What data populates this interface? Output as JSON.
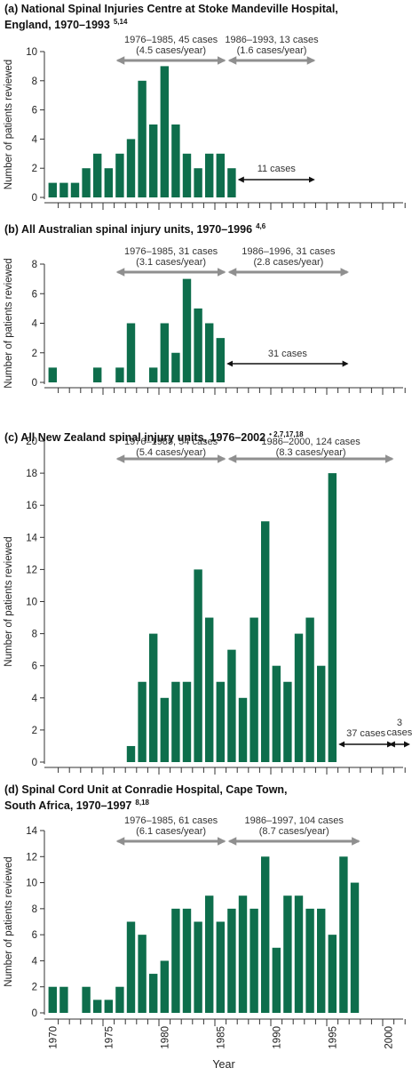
{
  "chart_data": [
    {
      "type": "bar",
      "title": "(a) National Spinal Injuries Centre at Stoke Mandeville Hospital,",
      "title_line2": "England, 1970–1993",
      "title_refs": "5,14",
      "ylabel": "Number of patients reviewed",
      "ylim": [
        0,
        10
      ],
      "yticks": [
        0,
        2,
        4,
        6,
        8,
        10
      ],
      "x": [
        1970,
        1971,
        1972,
        1973,
        1974,
        1975,
        1976,
        1977,
        1978,
        1979,
        1980,
        1981,
        1982,
        1983,
        1984,
        1985,
        1986
      ],
      "values": [
        1,
        1,
        1,
        2,
        3,
        2,
        3,
        4,
        8,
        5,
        9,
        5,
        3,
        2,
        3,
        3,
        2
      ],
      "annotations": [
        {
          "lines": [
            "1976–1985, 45 cases",
            "(4.5 cases/year)"
          ],
          "style": "gray",
          "from": 1976,
          "to": 1985
        },
        {
          "lines": [
            "1986–1993, 13 cases",
            "(1.6 cases/year)"
          ],
          "style": "gray",
          "from": 1986,
          "to": 1993
        },
        {
          "lines": [
            "11 cases"
          ],
          "style": "black",
          "from": 1987,
          "to": 1993,
          "value": 2
        }
      ]
    },
    {
      "type": "bar",
      "title": "(b) All Australian spinal injury units, 1970–1996",
      "title_refs": "4,6",
      "ylabel": "Number of patients reviewed",
      "ylim": [
        0,
        8
      ],
      "yticks": [
        0,
        2,
        4,
        6,
        8
      ],
      "x": [
        1970,
        1971,
        1972,
        1973,
        1974,
        1975,
        1976,
        1977,
        1978,
        1979,
        1980,
        1981,
        1982,
        1983,
        1984,
        1985
      ],
      "values": [
        1,
        0,
        0,
        0,
        1,
        0,
        1,
        4,
        0,
        1,
        4,
        2,
        7,
        5,
        4,
        3
      ],
      "annotations": [
        {
          "lines": [
            "1976–1985, 31 cases",
            "(3.1 cases/year)"
          ],
          "style": "gray",
          "from": 1976,
          "to": 1985
        },
        {
          "lines": [
            "1986–1996, 31 cases",
            "(2.8 cases/year)"
          ],
          "style": "gray",
          "from": 1986,
          "to": 1996
        },
        {
          "lines": [
            "31 cases"
          ],
          "style": "black",
          "from": 1986,
          "to": 1996,
          "value": 1.25
        }
      ]
    },
    {
      "type": "bar",
      "title": "(c) All New Zealand spinal injury units, 1976–2002",
      "title_refs": "• 2,7,17,18",
      "ylabel": "Number of patients reviewed",
      "ylim": [
        0,
        20
      ],
      "yticks": [
        0,
        2,
        4,
        6,
        8,
        10,
        12,
        14,
        16,
        18,
        20
      ],
      "x": [
        1977,
        1978,
        1979,
        1980,
        1981,
        1982,
        1983,
        1984,
        1985,
        1986,
        1987,
        1988,
        1989,
        1990,
        1991,
        1992,
        1993,
        1994,
        1995
      ],
      "values": [
        1,
        5,
        8,
        4,
        5,
        5,
        12,
        9,
        5,
        7,
        4,
        9,
        15,
        6,
        5,
        8,
        9,
        6,
        18
      ],
      "annotations": [
        {
          "lines": [
            "1976–1985, 54 cases",
            "(5.4 cases/year)"
          ],
          "style": "gray",
          "from": 1976,
          "to": 1985
        },
        {
          "lines": [
            "1986–2000, 124 cases",
            "(8.3 cases/year)"
          ],
          "style": "gray",
          "from": 1986,
          "to": 2000
        },
        {
          "lines": [
            "37 cases"
          ],
          "style": "black",
          "from": 1996,
          "to": 2000,
          "value": 0.5
        },
        {
          "lines": [
            "3",
            "cases"
          ],
          "style": "black",
          "from": 2000.5,
          "to": 2001.5,
          "value": 0.5
        }
      ]
    },
    {
      "type": "bar",
      "title": "(d) Spinal Cord Unit at Conradie Hospital, Cape Town,",
      "title_line2": "South Africa, 1970–1997",
      "title_refs": "8,18",
      "ylabel": "Number of patients reviewed",
      "xlabel": "Year",
      "ylim": [
        0,
        14
      ],
      "yticks": [
        0,
        2,
        4,
        6,
        8,
        10,
        12,
        14
      ],
      "x": [
        1970,
        1971,
        1972,
        1973,
        1974,
        1975,
        1976,
        1977,
        1978,
        1979,
        1980,
        1981,
        1982,
        1983,
        1984,
        1985,
        1986,
        1987,
        1988,
        1989,
        1990,
        1991,
        1992,
        1993,
        1994,
        1995,
        1996,
        1997
      ],
      "values": [
        2,
        2,
        0,
        2,
        1,
        1,
        2,
        7,
        6,
        3,
        4,
        8,
        8,
        7,
        9,
        7,
        8,
        9,
        8,
        12,
        5,
        9,
        9,
        8,
        8,
        6,
        12,
        10
      ],
      "xticklabels": [
        "1970",
        "1975",
        "1980",
        "1985",
        "1990",
        "1995",
        "2000"
      ],
      "annotations": [
        {
          "lines": [
            "1976–1985, 61 cases",
            "(6.1 cases/year)"
          ],
          "style": "gray",
          "from": 1976,
          "to": 1985
        },
        {
          "lines": [
            "1986–1997, 104 cases",
            "(8.7 cases/year)"
          ],
          "style": "gray",
          "from": 1986,
          "to": 1997
        }
      ]
    }
  ]
}
